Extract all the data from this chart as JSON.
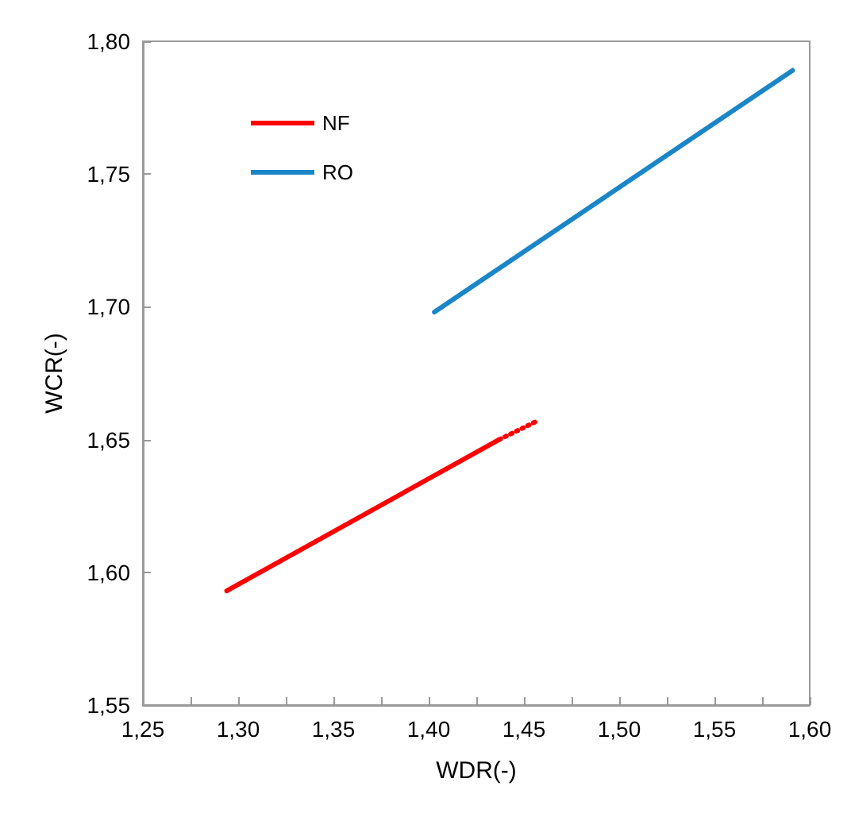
{
  "chart_data": {
    "type": "line",
    "xlabel": "WDR(-)",
    "ylabel": "WCR(-)",
    "xlim": [
      1.25,
      1.6
    ],
    "ylim": [
      1.55,
      1.8
    ],
    "xticks": [
      {
        "value": 1.25,
        "label": "1,25"
      },
      {
        "value": 1.275,
        "label": null
      },
      {
        "value": 1.3,
        "label": "1,30"
      },
      {
        "value": 1.325,
        "label": null
      },
      {
        "value": 1.35,
        "label": "1,35"
      },
      {
        "value": 1.375,
        "label": null
      },
      {
        "value": 1.4,
        "label": "1,40"
      },
      {
        "value": 1.425,
        "label": null
      },
      {
        "value": 1.45,
        "label": "1,45"
      },
      {
        "value": 1.475,
        "label": null
      },
      {
        "value": 1.5,
        "label": "1,50"
      },
      {
        "value": 1.525,
        "label": null
      },
      {
        "value": 1.55,
        "label": "1,55"
      },
      {
        "value": 1.575,
        "label": null
      },
      {
        "value": 1.6,
        "label": "1,60"
      }
    ],
    "yticks": [
      {
        "value": 1.55,
        "label": "1,55"
      },
      {
        "value": 1.6,
        "label": "1,60"
      },
      {
        "value": 1.65,
        "label": "1,65"
      },
      {
        "value": 1.7,
        "label": "1,70"
      },
      {
        "value": 1.75,
        "label": "1,75"
      },
      {
        "value": 1.8,
        "label": "1,80"
      }
    ],
    "series": [
      {
        "name": "NF",
        "color": "#ff0000",
        "x": [
          1.294,
          1.437
        ],
        "values": [
          1.593,
          1.65
        ]
      },
      {
        "name": "RO",
        "color": "#1a86c8",
        "x": [
          1.403,
          1.591
        ],
        "values": [
          1.698,
          1.789
        ]
      },
      {
        "color": "#ff0000",
        "x": [
          1.437,
          1.457
        ],
        "values": [
          1.65,
          1.657
        ],
        "line_style": "dotted"
      }
    ],
    "grid": false,
    "legend": "top left",
    "marker": "none",
    "line_style": "solid"
  }
}
